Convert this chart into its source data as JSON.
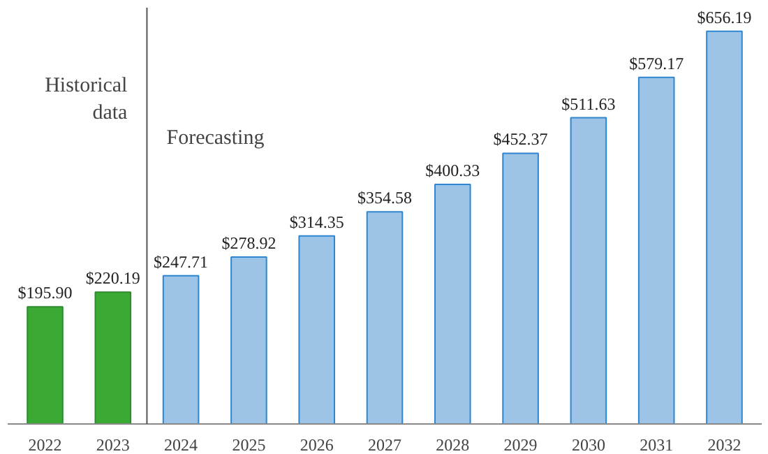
{
  "chart_data": {
    "type": "bar",
    "x": [
      2022,
      2023,
      2024,
      2025,
      2026,
      2027,
      2028,
      2029,
      2030,
      2031,
      2032
    ],
    "values": [
      195.9,
      220.19,
      247.71,
      278.92,
      314.35,
      354.58,
      400.33,
      452.37,
      511.63,
      579.17,
      656.19
    ],
    "value_labels": [
      "$195.90",
      "$220.19",
      "$247.71",
      "$278.92",
      "$314.35",
      "$354.58",
      "$400.33",
      "$452.37",
      "$511.63",
      "$579.17",
      "$656.19"
    ],
    "colors": [
      "#3aaa35",
      "#3aaa35",
      "#9dc3e6",
      "#9dc3e6",
      "#9dc3e6",
      "#9dc3e6",
      "#9dc3e6",
      "#9dc3e6",
      "#9dc3e6",
      "#9dc3e6",
      "#9dc3e6"
    ],
    "xlim": [
      2021.45,
      2032.55
    ],
    "xticks": [
      2022,
      2023,
      2024,
      2025,
      2026,
      2027,
      2028,
      2029,
      2030,
      2031,
      2032
    ],
    "ref_lines": [
      {
        "axis": "x",
        "value": 2023.5,
        "color": "#555555"
      }
    ],
    "annotations": [
      "Historical data",
      "Forecasting"
    ],
    "grid": false
  }
}
